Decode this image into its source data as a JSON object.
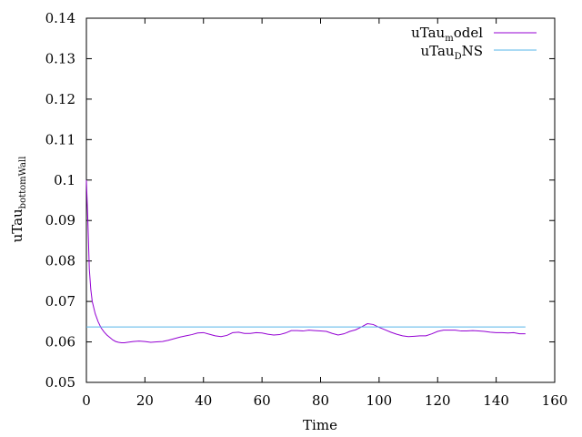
{
  "chart_data": {
    "type": "line",
    "xlabel": "Time",
    "ylabel": {
      "main": "uTau",
      "sub": "bottomWall"
    },
    "xlim": [
      0,
      160
    ],
    "ylim": [
      0.05,
      0.14
    ],
    "xticks": [
      0,
      20,
      40,
      60,
      80,
      100,
      120,
      140,
      160
    ],
    "yticks": [
      0.05,
      0.06,
      0.07,
      0.08,
      0.09,
      0.1,
      0.11,
      0.12,
      0.13,
      0.14
    ],
    "xtick_labels": [
      "0",
      "20",
      "40",
      "60",
      "80",
      "100",
      "120",
      "140",
      "160"
    ],
    "ytick_labels": [
      "0.05",
      "0.06",
      "0.07",
      "0.08",
      "0.09",
      "0.1",
      "0.11",
      "0.12",
      "0.13",
      "0.14"
    ],
    "grid": false,
    "legend_position": "top-right",
    "series": [
      {
        "name": {
          "main": "uTau",
          "sub": "m",
          "rest": "odel"
        },
        "color": "#9400d3",
        "x": [
          0,
          0.5,
          1,
          1.5,
          2,
          3,
          4,
          5,
          6,
          7,
          8,
          9,
          10,
          11,
          12,
          13,
          14,
          16,
          18,
          20,
          22,
          24,
          26,
          28,
          30,
          32,
          34,
          36,
          38,
          40,
          42,
          44,
          46,
          48,
          50,
          52,
          54,
          56,
          58,
          60,
          62,
          64,
          66,
          68,
          70,
          72,
          74,
          76,
          78,
          80,
          82,
          84,
          86,
          88,
          90,
          92,
          94,
          96,
          98,
          100,
          102,
          104,
          106,
          108,
          110,
          112,
          114,
          116,
          118,
          120,
          122,
          124,
          126,
          128,
          130,
          132,
          134,
          136,
          138,
          140,
          142,
          144,
          146,
          148,
          150
        ],
        "y": [
          0.1,
          0.09,
          0.078,
          0.073,
          0.07,
          0.067,
          0.065,
          0.0635,
          0.0625,
          0.0617,
          0.0611,
          0.0605,
          0.0601,
          0.0599,
          0.0598,
          0.0598,
          0.0599,
          0.0601,
          0.0602,
          0.0601,
          0.0599,
          0.06,
          0.0601,
          0.0604,
          0.0608,
          0.0612,
          0.0615,
          0.0618,
          0.0622,
          0.0623,
          0.0619,
          0.0615,
          0.0613,
          0.0616,
          0.0623,
          0.0624,
          0.0621,
          0.0621,
          0.0623,
          0.0622,
          0.0619,
          0.0617,
          0.0618,
          0.0622,
          0.0628,
          0.0628,
          0.0627,
          0.0629,
          0.0628,
          0.0627,
          0.0626,
          0.0621,
          0.0617,
          0.062,
          0.0626,
          0.063,
          0.0637,
          0.0645,
          0.0643,
          0.0636,
          0.063,
          0.0624,
          0.0619,
          0.0615,
          0.0613,
          0.0614,
          0.0615,
          0.0615,
          0.062,
          0.0626,
          0.0629,
          0.0629,
          0.0629,
          0.0627,
          0.0627,
          0.0628,
          0.0627,
          0.0626,
          0.0624,
          0.0623,
          0.0623,
          0.0622,
          0.0623,
          0.062,
          0.062
        ]
      },
      {
        "name": {
          "main": "uTau",
          "sub": "D",
          "rest": "NS"
        },
        "color": "#56b4e9",
        "x": [
          0,
          150
        ],
        "y": [
          0.0637,
          0.0637
        ]
      }
    ]
  }
}
